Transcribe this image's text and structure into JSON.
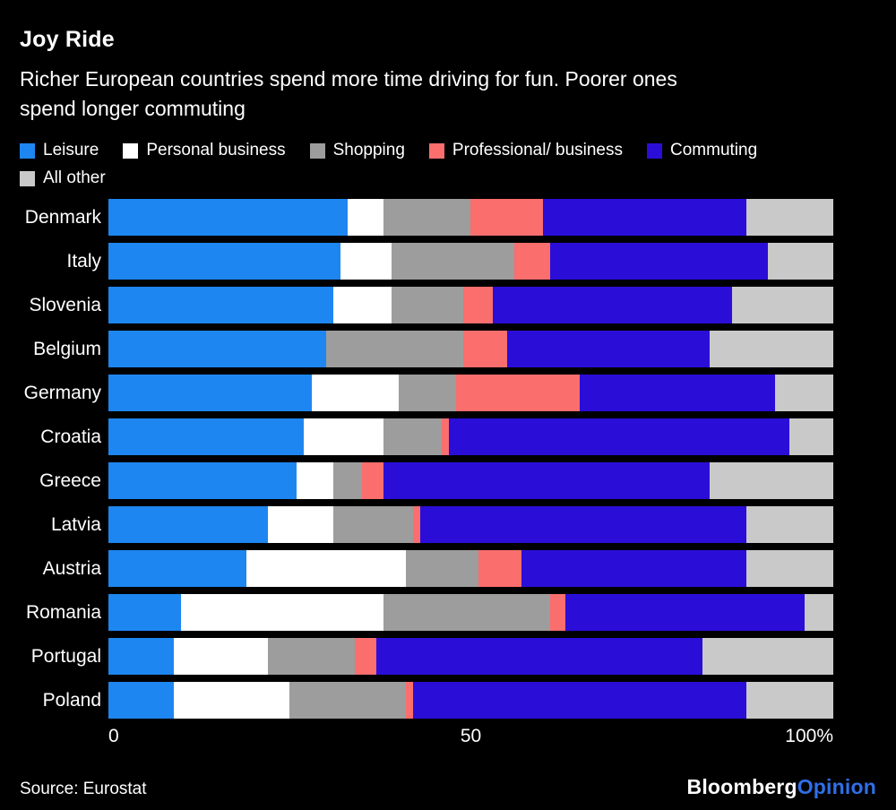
{
  "header": {
    "title": "Joy Ride",
    "subtitle_line1": "Richer European countries spend more time driving for fun. Poorer ones",
    "subtitle_line2": "spend longer commuting"
  },
  "chart_data": {
    "type": "bar",
    "stacked": true,
    "orientation": "horizontal",
    "unit": "%",
    "xlim": [
      0,
      100
    ],
    "x_ticks": [
      "0",
      "50",
      "100%"
    ],
    "grid": false,
    "legend_position": "top",
    "categories": [
      "Denmark",
      "Italy",
      "Slovenia",
      "Belgium",
      "Germany",
      "Croatia",
      "Greece",
      "Latvia",
      "Austria",
      "Romania",
      "Portugal",
      "Poland"
    ],
    "series": [
      {
        "name": "Leisure",
        "color": "#1e86f0",
        "values": [
          33,
          32,
          31,
          30,
          28,
          27,
          26,
          22,
          19,
          10,
          9,
          9
        ]
      },
      {
        "name": "Personal business",
        "color": "#ffffff",
        "values": [
          5,
          7,
          8,
          0,
          12,
          11,
          5,
          9,
          22,
          28,
          13,
          16
        ]
      },
      {
        "name": "Shopping",
        "color": "#9d9d9d",
        "values": [
          12,
          17,
          10,
          19,
          8,
          8,
          4,
          11,
          10,
          23,
          12,
          16
        ]
      },
      {
        "name": "Professional/ business",
        "color": "#fa6e6e",
        "values": [
          10,
          5,
          4,
          6,
          17,
          1,
          3,
          1,
          6,
          2,
          3,
          1
        ]
      },
      {
        "name": "Commuting",
        "color": "#2a0ed8",
        "values": [
          28,
          30,
          33,
          28,
          27,
          47,
          45,
          45,
          31,
          33,
          45,
          46
        ]
      },
      {
        "name": "All other",
        "color": "#c9c9c9",
        "values": [
          12,
          9,
          14,
          17,
          8,
          6,
          17,
          12,
          12,
          4,
          18,
          12
        ]
      }
    ]
  },
  "footer": {
    "source": "Source: Eurostat",
    "brand_primary": "Bloomberg",
    "brand_secondary": "Opinion",
    "brand_secondary_color": "#2f6fe8"
  }
}
